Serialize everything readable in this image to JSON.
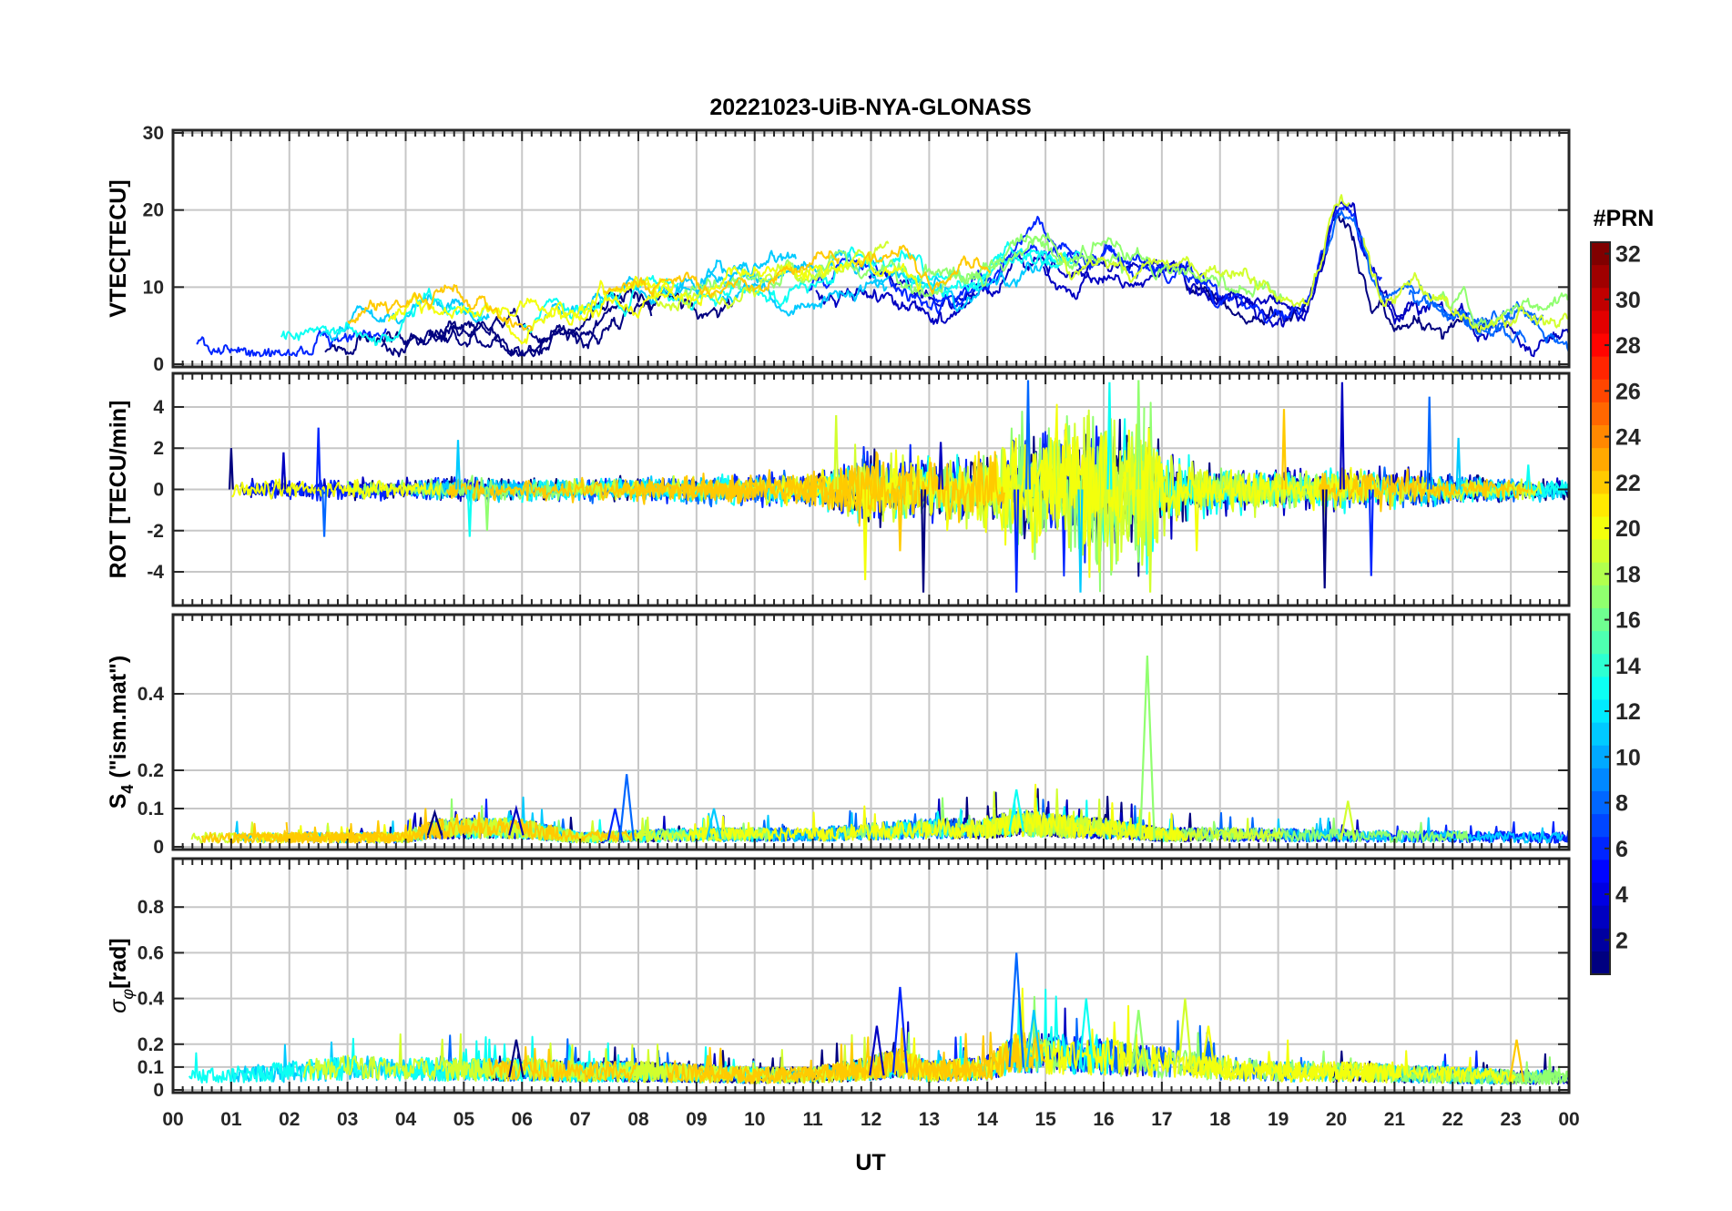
{
  "chart_data": {
    "type": "line",
    "title": "20221023-UiB-NYA-GLONASS",
    "xlabel": "UT",
    "x_ticks": [
      "00",
      "01",
      "02",
      "03",
      "04",
      "05",
      "06",
      "07",
      "08",
      "09",
      "10",
      "11",
      "12",
      "13",
      "14",
      "15",
      "16",
      "17",
      "18",
      "19",
      "20",
      "21",
      "22",
      "23",
      "00"
    ],
    "xlim": [
      0,
      24
    ],
    "grid": true,
    "colorbar": {
      "label": "#PRN",
      "range": [
        1,
        32
      ],
      "ticks": [
        "32",
        "30",
        "28",
        "26",
        "24",
        "22",
        "20",
        "18",
        "16",
        "14",
        "12",
        "10",
        "8",
        "6",
        "4",
        "2"
      ],
      "tick_values": [
        32,
        30,
        28,
        26,
        24,
        22,
        20,
        18,
        16,
        14,
        12,
        10,
        8,
        6,
        4,
        2
      ],
      "colormap": "jet",
      "colors": [
        "#00008f",
        "#0000ff",
        "#0080ff",
        "#00ffff",
        "#80ff80",
        "#ffff00",
        "#ff8000",
        "#ff0000",
        "#800000"
      ]
    },
    "series_prns": [
      1,
      3,
      6,
      8,
      11,
      13,
      17,
      19,
      20,
      22
    ],
    "panels": [
      {
        "ylabel": "VTEC[TECU]",
        "ylim": [
          0,
          30
        ],
        "yticks": [
          0,
          10,
          20,
          30
        ],
        "ytick_labels": [
          "0",
          "10",
          "20",
          "30"
        ],
        "envelope": [
          [
            0,
            4
          ],
          [
            1,
            3.5
          ],
          [
            2,
            3.5
          ],
          [
            3,
            4
          ],
          [
            4,
            5
          ],
          [
            5,
            6.5
          ],
          [
            6,
            5.5
          ],
          [
            7,
            6.5
          ],
          [
            8,
            9
          ],
          [
            9,
            9
          ],
          [
            10,
            10
          ],
          [
            11,
            11
          ],
          [
            11.5,
            12
          ],
          [
            12,
            12
          ],
          [
            12.5,
            12
          ],
          [
            13,
            10
          ],
          [
            14,
            11
          ],
          [
            14.5,
            14
          ],
          [
            15,
            14
          ],
          [
            15.5,
            12
          ],
          [
            16,
            14
          ],
          [
            16.5,
            13
          ],
          [
            17,
            13
          ],
          [
            17.5,
            12
          ],
          [
            18,
            11
          ],
          [
            19,
            9
          ],
          [
            19.5,
            8
          ],
          [
            19.8,
            15
          ],
          [
            20,
            21
          ],
          [
            20.3,
            20
          ],
          [
            20.6,
            12
          ],
          [
            21,
            9
          ],
          [
            22,
            8
          ],
          [
            23,
            6
          ],
          [
            24,
            5
          ]
        ]
      },
      {
        "ylabel": "ROT [TECU/min]",
        "ylim": [
          -5.5,
          5.5
        ],
        "yticks": [
          -4,
          -2,
          0,
          2,
          4
        ],
        "ytick_labels": [
          "-4",
          "-2",
          "0",
          "2",
          "4"
        ],
        "envelope": [
          [
            0,
            0.4
          ],
          [
            2.5,
            0.5
          ],
          [
            4,
            0.4
          ],
          [
            5,
            0.6
          ],
          [
            7,
            0.5
          ],
          [
            9,
            0.6
          ],
          [
            11,
            0.8
          ],
          [
            11.5,
            1.3
          ],
          [
            12,
            1.8
          ],
          [
            13,
            1.4
          ],
          [
            14,
            1.8
          ],
          [
            14.5,
            3
          ],
          [
            15,
            3.2
          ],
          [
            16,
            3.6
          ],
          [
            16.8,
            3.8
          ],
          [
            17,
            2.2
          ],
          [
            17.5,
            1.3
          ],
          [
            18,
            1.1
          ],
          [
            19,
            0.9
          ],
          [
            20,
            1
          ],
          [
            21,
            0.9
          ],
          [
            22,
            0.6
          ],
          [
            24,
            0.5
          ]
        ],
        "peaks": [
          {
            "x": 1.0,
            "y": 2.0
          },
          {
            "x": 1.9,
            "y": 1.8
          },
          {
            "x": 2.5,
            "y": 3.0
          },
          {
            "x": 2.6,
            "y": -2.3
          },
          {
            "x": 4.9,
            "y": 2.4
          },
          {
            "x": 5.1,
            "y": -2.3
          },
          {
            "x": 5.4,
            "y": -2.0
          },
          {
            "x": 11.4,
            "y": 3.6
          },
          {
            "x": 11.9,
            "y": -4.4
          },
          {
            "x": 12.5,
            "y": -3.0
          },
          {
            "x": 12.9,
            "y": -5.0
          },
          {
            "x": 13.2,
            "y": 2.3
          },
          {
            "x": 14.5,
            "y": -5.0
          },
          {
            "x": 14.7,
            "y": 5.3
          },
          {
            "x": 15.6,
            "y": -5.0
          },
          {
            "x": 16.1,
            "y": 5.2
          },
          {
            "x": 16.6,
            "y": 5.3
          },
          {
            "x": 16.8,
            "y": -5.0
          },
          {
            "x": 17.6,
            "y": -3.0
          },
          {
            "x": 19.1,
            "y": 3.9
          },
          {
            "x": 19.8,
            "y": -4.8
          },
          {
            "x": 20.1,
            "y": 5.2
          },
          {
            "x": 20.6,
            "y": -4.2
          },
          {
            "x": 21.6,
            "y": 4.5
          },
          {
            "x": 22.1,
            "y": 2.5
          },
          {
            "x": 23.3,
            "y": 1.2
          }
        ]
      },
      {
        "ylabel": "S4 (\"ism.mat\")",
        "ylim": [
          0,
          0.6
        ],
        "yticks": [
          0,
          0.1,
          0.2,
          0.4
        ],
        "ytick_labels": [
          "0",
          "0.1",
          "0.2",
          "0.4"
        ],
        "envelope": [
          [
            0,
            0.03
          ],
          [
            4,
            0.03
          ],
          [
            4.5,
            0.06
          ],
          [
            6,
            0.06
          ],
          [
            7,
            0.03
          ],
          [
            9,
            0.04
          ],
          [
            11,
            0.04
          ],
          [
            12,
            0.05
          ],
          [
            13,
            0.06
          ],
          [
            14,
            0.06
          ],
          [
            14.5,
            0.08
          ],
          [
            15,
            0.07
          ],
          [
            16,
            0.06
          ],
          [
            17,
            0.04
          ],
          [
            18,
            0.04
          ],
          [
            24,
            0.03
          ]
        ],
        "peaks": [
          {
            "x": 4.5,
            "y": 0.09
          },
          {
            "x": 5.9,
            "y": 0.1
          },
          {
            "x": 7.6,
            "y": 0.1
          },
          {
            "x": 7.8,
            "y": 0.19
          },
          {
            "x": 9.3,
            "y": 0.1
          },
          {
            "x": 14.5,
            "y": 0.15
          },
          {
            "x": 16.75,
            "y": 0.5
          },
          {
            "x": 20.2,
            "y": 0.12
          }
        ]
      },
      {
        "ylabel": "σφ[rad]",
        "ylim": [
          0,
          1.0
        ],
        "yticks": [
          0,
          0.1,
          0.2,
          0.4,
          0.6,
          0.8
        ],
        "ytick_labels": [
          "0",
          "0.1",
          "0.2",
          "0.4",
          "0.6",
          "0.8"
        ],
        "envelope": [
          [
            0,
            0.07
          ],
          [
            1,
            0.08
          ],
          [
            2,
            0.1
          ],
          [
            3,
            0.12
          ],
          [
            5,
            0.11
          ],
          [
            6,
            0.11
          ],
          [
            7,
            0.1
          ],
          [
            8,
            0.1
          ],
          [
            10,
            0.08
          ],
          [
            11,
            0.08
          ],
          [
            12,
            0.12
          ],
          [
            12.5,
            0.15
          ],
          [
            13,
            0.1
          ],
          [
            14,
            0.12
          ],
          [
            14.5,
            0.2
          ],
          [
            15,
            0.2
          ],
          [
            16,
            0.18
          ],
          [
            17,
            0.15
          ],
          [
            18,
            0.12
          ],
          [
            19,
            0.1
          ],
          [
            20,
            0.1
          ],
          [
            21,
            0.09
          ],
          [
            22,
            0.08
          ],
          [
            23,
            0.07
          ],
          [
            24,
            0.07
          ]
        ],
        "peaks": [
          {
            "x": 5.9,
            "y": 0.22
          },
          {
            "x": 12.1,
            "y": 0.28
          },
          {
            "x": 12.5,
            "y": 0.45
          },
          {
            "x": 14.5,
            "y": 0.6
          },
          {
            "x": 14.8,
            "y": 0.35
          },
          {
            "x": 15.7,
            "y": 0.4
          },
          {
            "x": 16.6,
            "y": 0.35
          },
          {
            "x": 17.4,
            "y": 0.4
          },
          {
            "x": 17.8,
            "y": 0.28
          },
          {
            "x": 23.1,
            "y": 0.22
          }
        ]
      }
    ]
  }
}
